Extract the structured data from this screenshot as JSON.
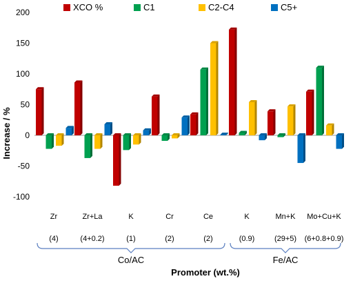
{
  "chart_data": {
    "type": "bar",
    "categories": [
      {
        "name": "Zr",
        "loading": "(4)"
      },
      {
        "name": "Zr+La",
        "loading": "(4+0.2)"
      },
      {
        "name": "K",
        "loading": "(1)"
      },
      {
        "name": "Cr",
        "loading": "(2)"
      },
      {
        "name": "Ce",
        "loading": "(2)"
      },
      {
        "name": "K",
        "loading": "(0.9)"
      },
      {
        "name": "Mn+K",
        "loading": "(29+5)"
      },
      {
        "name": "Mo+Cu+K",
        "loading": "(6+0.8+0.9)"
      }
    ],
    "groups": [
      {
        "label": "Co/AC",
        "categories": [
          0,
          1,
          2,
          3,
          4
        ]
      },
      {
        "label": "Fe/AC",
        "categories": [
          5,
          6,
          7
        ]
      }
    ],
    "series": [
      {
        "name": "XCO %",
        "color": "#C00000",
        "values": [
          75,
          86,
          -82,
          63,
          34,
          172,
          39,
          71
        ]
      },
      {
        "name": "C1",
        "color": "#00A050",
        "values": [
          -22,
          -37,
          -24,
          -9,
          107,
          4,
          -3,
          110
        ]
      },
      {
        "name": "C2-C4",
        "color": "#FFC000",
        "values": [
          -17,
          -22,
          -15,
          -5,
          150,
          54,
          47,
          16
        ]
      },
      {
        "name": "C5+",
        "color": "#0070C0",
        "values": [
          12,
          18,
          8,
          29,
          1,
          -8,
          -45,
          -22
        ]
      }
    ],
    "yticks": [
      -100,
      -50,
      0,
      50,
      100,
      150,
      200
    ],
    "ylim": [
      -100,
      200
    ],
    "ylabel": "Increase / %",
    "xlabel": "Promoter (wt.%)",
    "legend_position": "top",
    "grid": false
  }
}
